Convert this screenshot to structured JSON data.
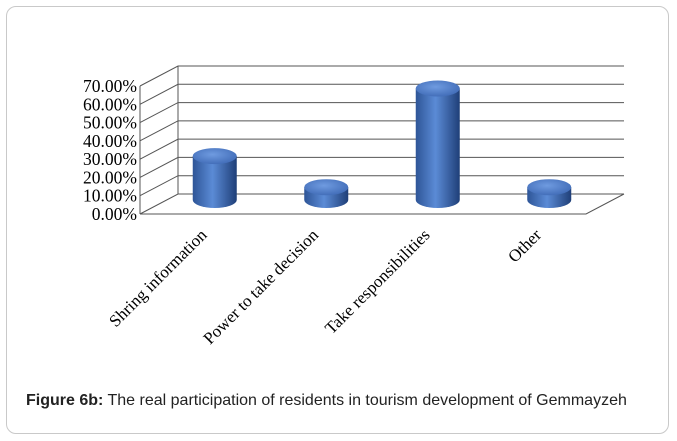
{
  "caption": {
    "label": "Figure 6b:",
    "text": " The real participation of residents in tourism development of Gemmayzeh"
  },
  "chart_data": {
    "type": "bar",
    "categories": [
      "Shring information",
      "Power to take decision",
      "Take responsibilities",
      "Other"
    ],
    "values": [
      0.24,
      0.07,
      0.61,
      0.07
    ],
    "ylim": [
      0,
      0.7
    ],
    "ytick_step": 0.1,
    "tick_labels": [
      "0.00%",
      "10.00%",
      "20.00%",
      "30.00%",
      "40.00%",
      "50.00%",
      "60.00%",
      "70.00%"
    ],
    "grid": true,
    "legend": "none",
    "bar_color": "#4472c4",
    "three_d": true
  }
}
